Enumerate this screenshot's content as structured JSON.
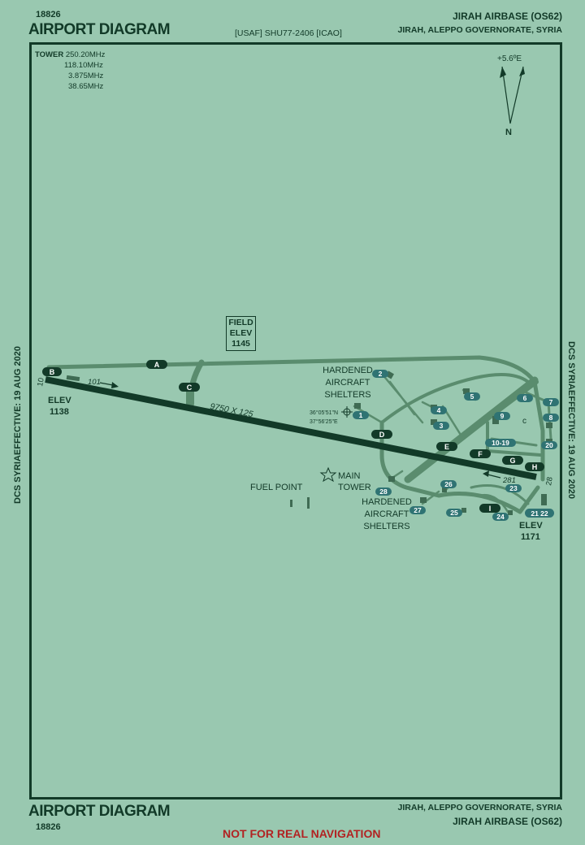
{
  "header": {
    "code_top": "18826",
    "title_top": "AIRPORT DIAGRAM",
    "source": "[USAF] SHU77-2406 [ICAO]",
    "airbase_top": "JIRAH AIRBASE (OS62)",
    "location_top": "JIRAH, ALEPPO GOVERNORATE,  SYRIA"
  },
  "footer": {
    "title_bottom": "AIRPORT DIAGRAM",
    "code_bottom": "18826",
    "location_bottom": "JIRAH, ALEPPO GOVERNORATE,  SYRIA",
    "airbase_bottom": "JIRAH AIRBASE (OS62)",
    "warning": "NOT FOR REAL NAVIGATION"
  },
  "side": {
    "left": "DCS SYRIAEFFECTIVE: 19 AUG 2020",
    "right": "DCS SYRIAEFFECTIVE: 19 AUG 2020"
  },
  "tower": {
    "label": "TOWER",
    "f1": "250.20MHz",
    "f2": "118.10MHz",
    "f3": "3.875MHz",
    "f4": "38.65MHz"
  },
  "compass": {
    "variation": "+5.6ºE",
    "north": "N"
  },
  "field_elev": {
    "l1": "FIELD",
    "l2": "ELEV",
    "l3": "1145"
  },
  "runway": {
    "dims": "9750  X 125",
    "rwy10": "10",
    "rwy28": "28",
    "hdg101": "101",
    "hdg281": "281",
    "elev_w_label": "ELEV",
    "elev_w": "1138",
    "elev_e_label": "ELEV",
    "elev_e": "1171"
  },
  "taxiways": [
    "A",
    "B",
    "C",
    "D",
    "E",
    "F",
    "G",
    "H",
    "I"
  ],
  "labels": {
    "has_north_1": "HARDENED",
    "has_north_2": "AIRCRAFT",
    "has_north_3": "SHELTERS",
    "has_south_1": "HARDENED",
    "has_south_2": "AIRCRAFT",
    "has_south_3": "SHELTERS",
    "main_tower_1": "MAIN",
    "main_tower_2": "TOWER",
    "fuel_point": "FUEL POINT",
    "coord_n": "36°05'51\"N",
    "coord_e": "37°56'25\"E",
    "apron_c": "c"
  },
  "parking": [
    "1",
    "2",
    "3",
    "4",
    "5",
    "6",
    "7",
    "8",
    "9",
    "10-19",
    "20",
    "21 22",
    "23",
    "24",
    "25",
    "26",
    "27",
    "28"
  ],
  "colors": {
    "background": "#99c8b0",
    "runway": "#123a28",
    "taxiway": "#5a8c6e",
    "parking_badge": "#2f7373",
    "warning": "#b22222"
  }
}
